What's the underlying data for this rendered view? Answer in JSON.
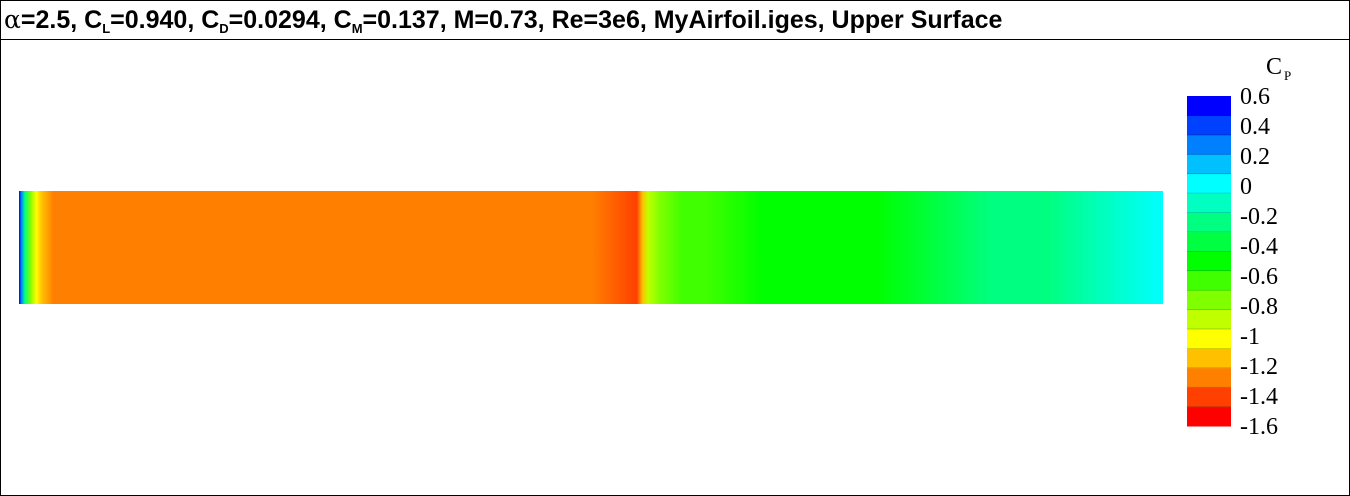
{
  "title": {
    "alpha_symbol": "α",
    "alpha_value": "=2.5, ",
    "cl_main": "C",
    "cl_sub": "L",
    "cl_value": "=0.940, ",
    "cd_main": "C",
    "cd_sub": "D",
    "cd_value": "=0.0294, ",
    "cm_main": "C",
    "cm_sub": "M",
    "cm_value": "=0.137, M=0.73, Re=3e6, MyAirfoil.iges, Upper Surface"
  },
  "chart_data": {
    "type": "heatmap",
    "colorbar": {
      "title_main": "C",
      "title_sub": "P",
      "vmin": -1.6,
      "vmax": 0.6,
      "ticks": [
        "0.6",
        "0.4",
        "0.2",
        "0",
        "-0.2",
        "-0.4",
        "-0.6",
        "-0.8",
        "-1",
        "-1.2",
        "-1.4",
        "-1.6"
      ],
      "bands": [
        "#ff0000",
        "#ff4000",
        "#ff8000",
        "#ffc000",
        "#ffff00",
        "#c0ff00",
        "#80ff00",
        "#40ff00",
        "#00ff00",
        "#00ff40",
        "#00ff80",
        "#00ffc0",
        "#00ffff",
        "#00c0ff",
        "#0080ff",
        "#0040ff",
        "#0000ff"
      ]
    },
    "surface_cp": {
      "x": [
        0.0,
        0.002,
        0.005,
        0.01,
        0.015,
        0.02,
        0.03,
        0.05,
        0.1,
        0.2,
        0.3,
        0.4,
        0.5,
        0.54,
        0.545,
        0.55,
        0.56,
        0.58,
        0.6,
        0.65,
        0.7,
        0.75,
        0.8,
        0.85,
        0.9,
        0.95,
        1.0
      ],
      "cp": [
        0.6,
        0.3,
        -0.2,
        -0.7,
        -1.0,
        -1.2,
        -1.3,
        -1.33,
        -1.33,
        -1.34,
        -1.32,
        -1.3,
        -1.33,
        -1.36,
        -1.2,
        -0.95,
        -0.75,
        -0.65,
        -0.6,
        -0.55,
        -0.52,
        -0.45,
        -0.35,
        -0.28,
        -0.2,
        -0.1,
        -0.02
      ]
    }
  }
}
